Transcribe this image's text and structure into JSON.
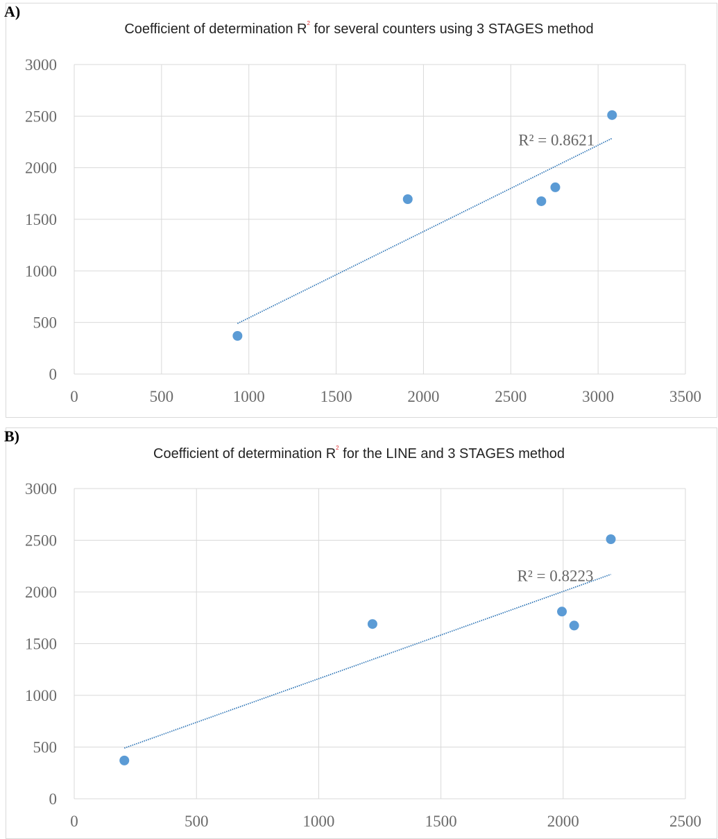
{
  "chart_data": [
    {
      "type": "scatter",
      "panel_label": "A)",
      "title_prefix": "Coefficient of determination R",
      "title_sup": "2",
      "title_suffix": " for several counters using 3 STAGES method",
      "points": [
        {
          "x": 935,
          "y": 370
        },
        {
          "x": 1910,
          "y": 1695
        },
        {
          "x": 2675,
          "y": 1675
        },
        {
          "x": 2755,
          "y": 1810
        },
        {
          "x": 3080,
          "y": 2510
        }
      ],
      "trendline": {
        "x_start": 935,
        "y_start": 490,
        "x_end": 3080,
        "y_end": 2285
      },
      "r2_label": "R² = 0.8621",
      "xlim": [
        0,
        3500
      ],
      "ylim": [
        0,
        3000
      ],
      "x_ticks": [
        "0",
        "500",
        "1000",
        "1500",
        "2000",
        "2500",
        "3000",
        "3500"
      ],
      "y_ticks": [
        "0",
        "500",
        "1000",
        "1500",
        "2000",
        "2500",
        "3000"
      ],
      "grid": true,
      "marker_color": "#5b9bd5",
      "trend_color": "#2e75b6"
    },
    {
      "type": "scatter",
      "panel_label": "B)",
      "title_prefix": "Coefficient of determination R",
      "title_sup": "2",
      "title_suffix": " for the LINE and 3 STAGES method",
      "points": [
        {
          "x": 205,
          "y": 370
        },
        {
          "x": 1220,
          "y": 1690
        },
        {
          "x": 1995,
          "y": 1810
        },
        {
          "x": 2045,
          "y": 1675
        },
        {
          "x": 2195,
          "y": 2510
        }
      ],
      "trendline": {
        "x_start": 205,
        "y_start": 490,
        "x_end": 2195,
        "y_end": 2170
      },
      "r2_label": "R² = 0.8223",
      "xlim": [
        0,
        2500
      ],
      "ylim": [
        0,
        3000
      ],
      "x_ticks": [
        "0",
        "500",
        "1000",
        "1500",
        "2000",
        "2500"
      ],
      "y_ticks": [
        "0",
        "500",
        "1000",
        "1500",
        "2000",
        "2500",
        "3000"
      ],
      "grid": true,
      "marker_color": "#5b9bd5",
      "trend_color": "#2e75b6"
    }
  ]
}
